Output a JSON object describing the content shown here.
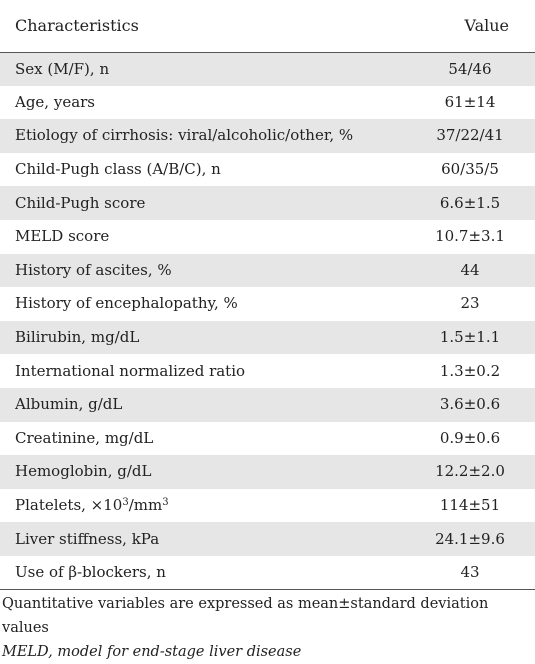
{
  "table": {
    "header": {
      "characteristics": "Characteristics",
      "value": "Value"
    },
    "rows": [
      {
        "label": "Sex (M/F), n",
        "value": "54/46"
      },
      {
        "label": "Age, years",
        "value": "61±14"
      },
      {
        "label": "Etiology of cirrhosis: viral/alcoholic/other, %",
        "value": "37/22/41"
      },
      {
        "label": "Child-Pugh class (A/B/C), n",
        "value": "60/35/5"
      },
      {
        "label": "Child-Pugh score",
        "value": "6.6±1.5"
      },
      {
        "label": "MELD score",
        "value": "10.7±3.1"
      },
      {
        "label": "History of ascites, %",
        "value": "44"
      },
      {
        "label": "History of encephalopathy, %",
        "value": "23"
      },
      {
        "label": "Bilirubin, mg/dL",
        "value": "1.5±1.1"
      },
      {
        "label": "International normalized ratio",
        "value": "1.3±0.2"
      },
      {
        "label": "Albumin, g/dL",
        "value": "3.6±0.6"
      },
      {
        "label": "Creatinine, mg/dL",
        "value": "0.9±0.6"
      },
      {
        "label": "Hemoglobin, g/dL",
        "value": "12.2±2.0"
      },
      {
        "label_prefix": "Platelets, ×10",
        "label_sup1": "3",
        "label_mid": "/mm",
        "label_sup2": "3",
        "value": "114±51"
      },
      {
        "label": "Liver stiffness, kPa",
        "value": "24.1±9.6"
      },
      {
        "label": "Use of β-blockers, n",
        "value": "43"
      }
    ]
  },
  "notes": {
    "line1": "Quantitative variables are expressed as mean±standard deviation values",
    "line2": "MELD, model for end-stage liver disease"
  },
  "colors": {
    "shaded_row": "#e6e6e6",
    "rule": "#555555",
    "text": "#222222"
  }
}
